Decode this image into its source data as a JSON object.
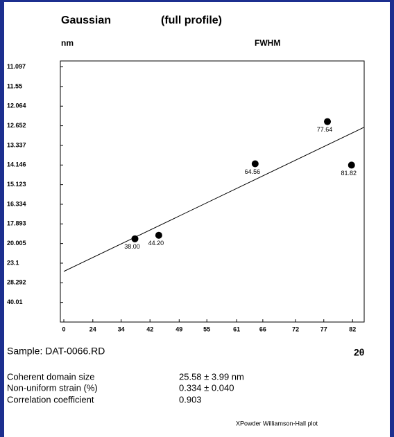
{
  "chart_data": {
    "type": "scatter",
    "title": "Gaussian",
    "subtitle": "(full profile)",
    "y_label": "nm",
    "y_header": "FWHM",
    "x_label": "2θ",
    "sample": "Sample: DAT-0066.RD",
    "x_scale": "sin-squared-half-angle",
    "y_scale": "inverse-square",
    "xlim": [
      0,
      84
    ],
    "xticks": [
      0,
      24,
      34,
      42,
      49,
      55,
      61,
      66,
      72,
      77,
      82
    ],
    "ylim": [
      null,
      10.97
    ],
    "yticks": [
      11.097,
      11.55,
      12.064,
      12.652,
      13.337,
      14.146,
      15.123,
      16.334,
      17.893,
      20.005,
      23.1,
      28.292,
      40.01
    ],
    "color": "#000000",
    "x": [
      38,
      44.2,
      64.56,
      77.64,
      81.82
    ],
    "x_labels": [
      "38.00",
      "44.20",
      "64.56",
      "77.64",
      "81.82"
    ],
    "values": [
      19.43,
      19.03,
      14.09,
      12.52,
      14.15
    ],
    "fit": {
      "x": [
        0,
        84
      ],
      "y": [
        24.91,
        12.7
      ]
    },
    "stats": [
      {
        "label": "Coherent domain size",
        "value": "25.58 ± 3.99 nm"
      },
      {
        "label": "Non-uniform strain (%)",
        "value": "0.334 ± 0.040"
      },
      {
        "label": "Correlation coefficient",
        "value": "0.903"
      }
    ],
    "footer": "XPowder Williamson-Hall plot"
  }
}
